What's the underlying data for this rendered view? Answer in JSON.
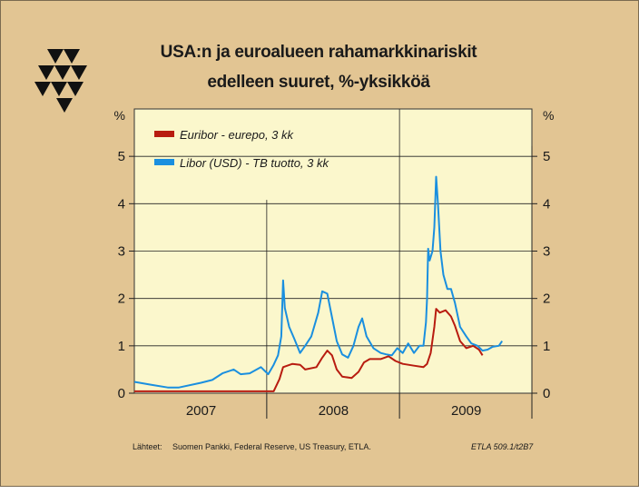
{
  "title": {
    "line1": "USA:n ja euroalueen rahamarkkinariskit",
    "line2": "edelleen suuret, %-yksikköä"
  },
  "source": {
    "label": "Lähteet:",
    "text": "Suomen Pankki, Federal Reserve, US Treasury, ETLA."
  },
  "code": "ETLA 509.1/t2B7",
  "logo_icon": "etla-triangles-logo-icon",
  "colors": {
    "background": "#e2c593",
    "plot": "#fbf7cc",
    "euribor": "#b81c10",
    "libor": "#1a8fdf"
  },
  "chart_data": {
    "type": "line",
    "x_start": "2006-07-01",
    "x_end": "2009-07-01",
    "ylim": [
      0,
      6
    ],
    "y_ticks": [
      0,
      1,
      2,
      3,
      4,
      5
    ],
    "y_unit_left": "%",
    "y_unit_right": "%",
    "x_tick_labels": [
      "2007",
      "2008",
      "2009"
    ],
    "grid": "vertical at 2007-07-01, 2008-07-01, 2009-07-01; horizontal at integer %",
    "legend_position": "top-left",
    "series": [
      {
        "name": "Euribor - eurepo, 3 kk",
        "color": "#b81c10",
        "points": [
          [
            "2006-07-01",
            0.04
          ],
          [
            "2006-10-01",
            0.04
          ],
          [
            "2007-01-01",
            0.04
          ],
          [
            "2007-03-01",
            0.04
          ],
          [
            "2007-06-01",
            0.04
          ],
          [
            "2007-07-20",
            0.04
          ],
          [
            "2007-08-05",
            0.3
          ],
          [
            "2007-08-15",
            0.55
          ],
          [
            "2007-09-10",
            0.62
          ],
          [
            "2007-10-01",
            0.6
          ],
          [
            "2007-10-15",
            0.5
          ],
          [
            "2007-11-15",
            0.55
          ],
          [
            "2007-12-01",
            0.75
          ],
          [
            "2007-12-15",
            0.9
          ],
          [
            "2007-12-28",
            0.8
          ],
          [
            "2008-01-10",
            0.5
          ],
          [
            "2008-01-25",
            0.35
          ],
          [
            "2008-02-20",
            0.32
          ],
          [
            "2008-03-10",
            0.45
          ],
          [
            "2008-03-25",
            0.65
          ],
          [
            "2008-04-10",
            0.72
          ],
          [
            "2008-05-10",
            0.72
          ],
          [
            "2008-06-01",
            0.78
          ],
          [
            "2008-06-20",
            0.68
          ],
          [
            "2008-07-10",
            0.62
          ],
          [
            "2008-08-10",
            0.58
          ],
          [
            "2008-09-05",
            0.55
          ],
          [
            "2008-09-15",
            0.62
          ],
          [
            "2008-09-25",
            0.85
          ],
          [
            "2008-10-05",
            1.4
          ],
          [
            "2008-10-10",
            1.78
          ],
          [
            "2008-10-20",
            1.7
          ],
          [
            "2008-11-05",
            1.75
          ],
          [
            "2008-11-20",
            1.62
          ],
          [
            "2008-12-01",
            1.42
          ],
          [
            "2008-12-15",
            1.1
          ],
          [
            "2009-01-01",
            0.95
          ],
          [
            "2009-01-20",
            1.0
          ],
          [
            "2009-02-05",
            0.92
          ],
          [
            "2009-02-15",
            0.8
          ]
        ]
      },
      {
        "name": "Libor (USD) - TB tuotto, 3 kk",
        "color": "#1a8fdf",
        "points": [
          [
            "2006-07-01",
            0.24
          ],
          [
            "2006-08-15",
            0.18
          ],
          [
            "2006-10-01",
            0.12
          ],
          [
            "2006-11-01",
            0.12
          ],
          [
            "2007-01-01",
            0.22
          ],
          [
            "2007-02-01",
            0.28
          ],
          [
            "2007-03-01",
            0.42
          ],
          [
            "2007-04-01",
            0.5
          ],
          [
            "2007-04-20",
            0.4
          ],
          [
            "2007-05-15",
            0.42
          ],
          [
            "2007-06-15",
            0.55
          ],
          [
            "2007-07-05",
            0.4
          ],
          [
            "2007-07-20",
            0.6
          ],
          [
            "2007-08-01",
            0.8
          ],
          [
            "2007-08-10",
            1.2
          ],
          [
            "2007-08-15",
            2.38
          ],
          [
            "2007-08-20",
            1.8
          ],
          [
            "2007-09-01",
            1.4
          ],
          [
            "2007-09-15",
            1.15
          ],
          [
            "2007-10-01",
            0.85
          ],
          [
            "2007-10-15",
            1.0
          ],
          [
            "2007-11-01",
            1.2
          ],
          [
            "2007-11-20",
            1.7
          ],
          [
            "2007-12-01",
            2.15
          ],
          [
            "2007-12-15",
            2.1
          ],
          [
            "2007-12-28",
            1.6
          ],
          [
            "2008-01-10",
            1.1
          ],
          [
            "2008-01-25",
            0.82
          ],
          [
            "2008-02-10",
            0.75
          ],
          [
            "2008-02-25",
            1.0
          ],
          [
            "2008-03-10",
            1.4
          ],
          [
            "2008-03-20",
            1.58
          ],
          [
            "2008-04-01",
            1.2
          ],
          [
            "2008-04-20",
            0.95
          ],
          [
            "2008-05-10",
            0.85
          ],
          [
            "2008-05-25",
            0.82
          ],
          [
            "2008-06-10",
            0.8
          ],
          [
            "2008-06-25",
            0.95
          ],
          [
            "2008-07-10",
            0.85
          ],
          [
            "2008-07-25",
            1.05
          ],
          [
            "2008-08-10",
            0.85
          ],
          [
            "2008-08-25",
            1.0
          ],
          [
            "2008-09-05",
            1.0
          ],
          [
            "2008-09-12",
            1.5
          ],
          [
            "2008-09-15",
            2.0
          ],
          [
            "2008-09-18",
            3.05
          ],
          [
            "2008-09-22",
            2.8
          ],
          [
            "2008-09-30",
            3.0
          ],
          [
            "2008-10-05",
            3.5
          ],
          [
            "2008-10-10",
            4.57
          ],
          [
            "2008-10-15",
            4.0
          ],
          [
            "2008-10-22",
            3.0
          ],
          [
            "2008-10-30",
            2.5
          ],
          [
            "2008-11-10",
            2.2
          ],
          [
            "2008-11-20",
            2.2
          ],
          [
            "2008-12-01",
            1.9
          ],
          [
            "2008-12-15",
            1.4
          ],
          [
            "2009-01-01",
            1.2
          ],
          [
            "2009-01-15",
            1.05
          ],
          [
            "2009-02-01",
            1.0
          ],
          [
            "2009-02-15",
            0.9
          ],
          [
            "2009-03-01",
            0.92
          ],
          [
            "2009-03-15",
            0.98
          ],
          [
            "2009-04-01",
            1.0
          ],
          [
            "2009-04-10",
            1.1
          ]
        ]
      }
    ]
  }
}
